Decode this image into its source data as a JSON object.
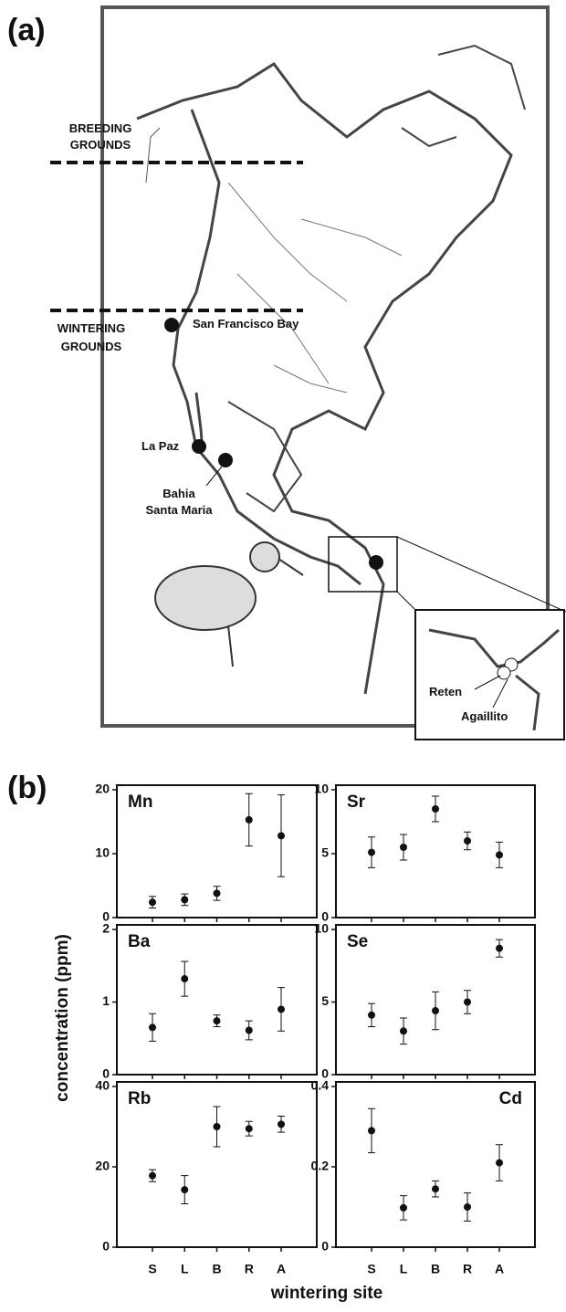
{
  "panel_labels": [
    "(a)",
    "(b)"
  ],
  "map": {
    "breeding_label": [
      "BREEDING",
      "GROUNDS"
    ],
    "wintering_label": [
      "WINTERING",
      "GROUNDS"
    ],
    "sites": [
      "San Francisco Bay",
      "La Paz"
    ],
    "bahia_label": [
      "Bahia",
      "Santa Maria"
    ],
    "inset_sites": [
      "Reten",
      "Agaillito"
    ]
  },
  "shared_axes": {
    "ylabel": "concentration (ppm)",
    "xlabel": "wintering site"
  },
  "chart_data": [
    {
      "type": "errorbar",
      "title": "Mn",
      "categories": [
        null,
        null,
        null,
        null,
        null
      ],
      "values": [
        2.4,
        2.8,
        3.8,
        15.3,
        12.8
      ],
      "errors": [
        0.9,
        0.9,
        1.1,
        4.1,
        6.4
      ],
      "ylim": [
        0,
        20
      ],
      "yticks": [
        0,
        10,
        20
      ],
      "color": "#111111"
    },
    {
      "type": "errorbar",
      "title": "Sr",
      "categories": [
        null,
        null,
        null,
        null,
        null
      ],
      "values": [
        5.1,
        5.5,
        8.5,
        6.0,
        4.9
      ],
      "errors": [
        1.2,
        1.0,
        1.0,
        0.7,
        1.0
      ],
      "ylim": [
        0,
        10
      ],
      "yticks": [
        0,
        5,
        10
      ],
      "color": "#111111"
    },
    {
      "type": "errorbar",
      "title": "Ba",
      "categories": [
        null,
        null,
        null,
        null,
        null
      ],
      "values": [
        0.65,
        1.32,
        0.74,
        0.61,
        0.9
      ],
      "errors": [
        0.19,
        0.24,
        0.08,
        0.13,
        0.3
      ],
      "ylim": [
        0,
        2
      ],
      "yticks": [
        0,
        1,
        2
      ],
      "color": "#111111"
    },
    {
      "type": "errorbar",
      "title": "Se",
      "categories": [
        null,
        null,
        null,
        null,
        null
      ],
      "values": [
        4.1,
        3.0,
        4.4,
        5.0,
        8.7
      ],
      "errors": [
        0.8,
        0.9,
        1.3,
        0.8,
        0.6
      ],
      "ylim": [
        0,
        10
      ],
      "yticks": [
        0,
        5,
        10
      ],
      "color": "#111111"
    },
    {
      "type": "errorbar",
      "title": "Rb",
      "categories": [
        "S",
        "L",
        "B",
        "R",
        "A"
      ],
      "values": [
        17.8,
        14.3,
        30.0,
        29.5,
        30.6
      ],
      "errors": [
        1.5,
        3.5,
        5.0,
        1.8,
        2.0
      ],
      "ylim": [
        0,
        40
      ],
      "yticks": [
        0,
        20,
        40
      ],
      "color": "#111111"
    },
    {
      "type": "errorbar",
      "title": "Cd",
      "categories": [
        "S",
        "L",
        "B",
        "R",
        "A"
      ],
      "values": [
        0.29,
        0.098,
        0.145,
        0.1,
        0.21
      ],
      "errors": [
        0.055,
        0.03,
        0.02,
        0.035,
        0.045
      ],
      "ylim": [
        0,
        0.4
      ],
      "yticks": [
        0,
        0.2,
        0.4
      ],
      "color": "#111111"
    }
  ]
}
